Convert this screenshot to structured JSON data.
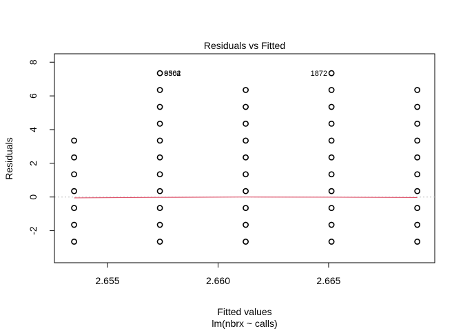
{
  "chart_data": {
    "type": "scatter",
    "title": "Residuals vs Fitted",
    "xlabel": "Fitted values",
    "sublabel": "lm(nbrx ~ calls)",
    "ylabel": "Residuals",
    "xlim": [
      2.6526,
      2.6698
    ],
    "ylim": [
      -3.9,
      8.5
    ],
    "x_ticks": [
      {
        "value": 2.655,
        "label": "2.655"
      },
      {
        "value": 2.66,
        "label": "2.660"
      },
      {
        "value": 2.665,
        "label": "2.665"
      }
    ],
    "y_ticks": [
      {
        "value": -2,
        "label": "-2"
      },
      {
        "value": 0,
        "label": "0"
      },
      {
        "value": 2,
        "label": "2"
      },
      {
        "value": 4,
        "label": "4"
      },
      {
        "value": 6,
        "label": "6"
      },
      {
        "value": 8,
        "label": "8"
      }
    ],
    "groups": [
      {
        "x": 2.65349,
        "residuals": [
          3.35,
          2.35,
          1.35,
          0.35,
          -0.65,
          -1.65,
          -2.65
        ]
      },
      {
        "x": 2.65737,
        "residuals": [
          7.35,
          6.35,
          5.35,
          4.35,
          3.35,
          2.35,
          1.35,
          0.35,
          -0.65,
          -1.65,
          -2.65
        ]
      },
      {
        "x": 2.66125,
        "residuals": [
          6.35,
          5.35,
          4.35,
          3.35,
          2.35,
          1.35,
          0.35,
          -0.65,
          -1.65,
          -2.65
        ]
      },
      {
        "x": 2.66513,
        "residuals": [
          7.35,
          6.35,
          5.35,
          4.35,
          3.35,
          2.35,
          1.35,
          0.35,
          -0.65,
          -1.65,
          -2.65
        ]
      },
      {
        "x": 2.66901,
        "residuals": [
          6.35,
          5.35,
          4.35,
          3.35,
          2.35,
          1.35,
          0.35,
          -0.65,
          -1.65,
          -2.65
        ]
      }
    ],
    "point_labels": [
      {
        "x": 2.65737,
        "y": 7.35,
        "labels": [
          "8502",
          "9364"
        ],
        "side": "right"
      },
      {
        "x": 2.66513,
        "y": 7.35,
        "labels": [
          "1872"
        ],
        "side": "left"
      }
    ],
    "smoother": [
      {
        "x": 2.65349,
        "y": -0.05
      },
      {
        "x": 2.65737,
        "y": -0.02
      },
      {
        "x": 2.66125,
        "y": 0.0
      },
      {
        "x": 2.66513,
        "y": -0.01
      },
      {
        "x": 2.66901,
        "y": -0.03
      }
    ],
    "reference_line": 0,
    "colors": {
      "points": "#000000",
      "smoother": "#DF536B",
      "reference": "#BEBEBE"
    }
  }
}
